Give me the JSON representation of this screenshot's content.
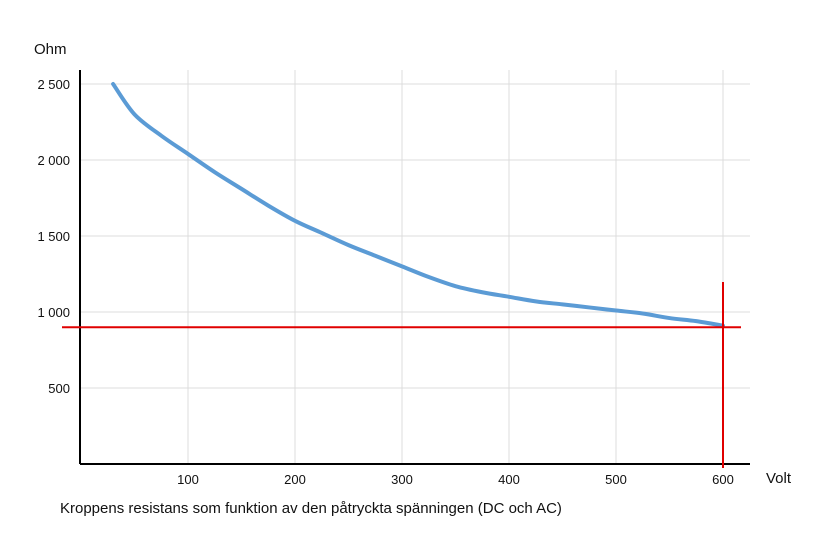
{
  "chart_data": {
    "type": "line",
    "title": "",
    "caption": "Kroppens resistans som funktion av den påtryckta spänningen (DC och AC)",
    "xlabel": "Volt",
    "ylabel": "Ohm",
    "xlim": [
      0,
      620
    ],
    "ylim": [
      0,
      2500
    ],
    "grid": true,
    "x_ticks": [
      {
        "value": 100,
        "label": "100"
      },
      {
        "value": 200,
        "label": "200"
      },
      {
        "value": 300,
        "label": "300"
      },
      {
        "value": 400,
        "label": "400"
      },
      {
        "value": 500,
        "label": "500"
      },
      {
        "value": 600,
        "label": "600"
      }
    ],
    "y_ticks": [
      {
        "value": 500,
        "label": "500"
      },
      {
        "value": 1000,
        "label": "1 000"
      },
      {
        "value": 1500,
        "label": "1 500"
      },
      {
        "value": 2000,
        "label": "2 000"
      },
      {
        "value": 2500,
        "label": "2 500"
      }
    ],
    "series": [
      {
        "color": "#5b9bd5",
        "x": [
          30,
          50,
          75,
          100,
          125,
          150,
          175,
          200,
          225,
          250,
          275,
          300,
          325,
          350,
          375,
          400,
          425,
          450,
          475,
          500,
          525,
          550,
          575,
          600
        ],
        "y": [
          2500,
          2300,
          2160,
          2040,
          1920,
          1810,
          1700,
          1600,
          1520,
          1440,
          1370,
          1300,
          1230,
          1170,
          1130,
          1100,
          1070,
          1050,
          1030,
          1010,
          990,
          960,
          940,
          910
        ]
      }
    ],
    "reference_lines": [
      {
        "orientation": "horizontal",
        "value": 900,
        "color": "#e00000"
      },
      {
        "orientation": "vertical",
        "value": 600,
        "color": "#e00000"
      }
    ]
  }
}
